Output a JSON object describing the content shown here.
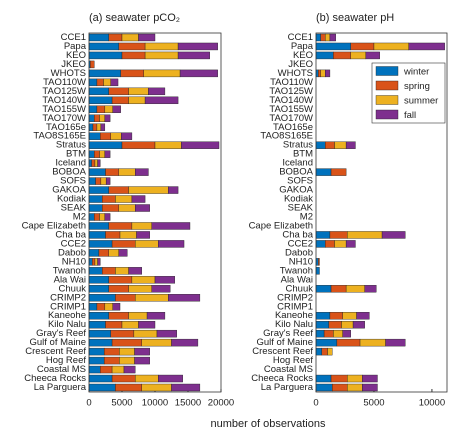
{
  "x_label": "number of observations",
  "chart_data": [
    {
      "type": "stacked-barh",
      "title": "(a) seawater pCO₂",
      "categories": [
        "CCE1",
        "Papa",
        "KEO",
        "JKEO",
        "WHOTS",
        "TAO110W",
        "TAO125W",
        "TAO140W",
        "TAO155W",
        "TAO170W",
        "TAO165e",
        "TAO8S165E",
        "Stratus",
        "BTM",
        "Iceland",
        "BOBOA",
        "SOFS",
        "GAKOA",
        "Kodiak",
        "SEAK",
        "M2",
        "Cape Elizabeth",
        "Cha ba",
        "CCE2",
        "Dabob",
        "NH10",
        "Twanoh",
        "Ala Wai",
        "Chuuk",
        "CRIMP2",
        "CRIMP1",
        "Kaneohe",
        "Kilo Nalu",
        "Gray's Reef",
        "Gulf of Maine",
        "Crescent Reef",
        "Hog Reef",
        "Coastal MS",
        "Cheeca Rocks",
        "La Parguera"
      ],
      "series": [
        {
          "name": "winter",
          "color": "#0072bd",
          "values": [
            3000,
            4500,
            5000,
            200,
            4800,
            1200,
            3000,
            3500,
            1200,
            800,
            600,
            1700,
            5000,
            800,
            400,
            2500,
            1000,
            3000,
            2000,
            2000,
            800,
            3000,
            2500,
            3500,
            1500,
            500,
            2000,
            3000,
            3000,
            4000,
            1200,
            3000,
            2500,
            3300,
            3500,
            2300,
            2300,
            1700,
            3500,
            4000
          ]
        },
        {
          "name": "spring",
          "color": "#d95319",
          "values": [
            2000,
            4000,
            3500,
            600,
            3500,
            1000,
            3000,
            2500,
            1200,
            800,
            600,
            1600,
            5000,
            800,
            500,
            2000,
            800,
            3000,
            2000,
            2500,
            800,
            3500,
            2200,
            3500,
            1500,
            400,
            2000,
            3500,
            3000,
            3000,
            1200,
            3000,
            2500,
            3500,
            4500,
            2300,
            2300,
            1800,
            3500,
            4000
          ]
        },
        {
          "name": "summer",
          "color": "#edb120",
          "values": [
            2500,
            5000,
            5000,
            0,
            5500,
            1100,
            3000,
            2500,
            1200,
            800,
            600,
            1600,
            4000,
            800,
            400,
            2500,
            800,
            6000,
            2500,
            2500,
            800,
            3000,
            2500,
            3500,
            1500,
            400,
            2000,
            3500,
            3500,
            5000,
            1200,
            2800,
            2500,
            3500,
            4500,
            2300,
            2300,
            1800,
            3500,
            4500
          ]
        },
        {
          "name": "fall",
          "color": "#7e2f8e",
          "values": [
            2500,
            6000,
            4800,
            0,
            5700,
            1100,
            2500,
            5000,
            1200,
            800,
            600,
            1600,
            5700,
            800,
            400,
            2000,
            600,
            1500,
            2000,
            2200,
            800,
            5800,
            2000,
            3900,
            1300,
            400,
            2000,
            3000,
            2800,
            4800,
            1100,
            2700,
            2500,
            3000,
            4000,
            2300,
            2300,
            1700,
            3700,
            4300
          ]
        }
      ],
      "xlim": [
        0,
        20000
      ],
      "xticks": [
        0,
        5000,
        10000,
        15000,
        20000
      ]
    },
    {
      "type": "stacked-barh",
      "title": "(b) seawater pH",
      "categories": [
        "CCE1",
        "Papa",
        "KEO",
        "JKEO",
        "WHOTS",
        "TAO110W",
        "TAO125W",
        "TAO140W",
        "TAO155W",
        "TAO170W",
        "TAO165e",
        "TAO8S165E",
        "Stratus",
        "BTM",
        "Iceland",
        "BOBOA",
        "SOFS",
        "GAKOA",
        "Kodiak",
        "SEAK",
        "M2",
        "Cape Elizabeth",
        "Cha ba",
        "CCE2",
        "Dabob",
        "NH10",
        "Twanoh",
        "Ala Wai",
        "Chuuk",
        "CRIMP2",
        "CRIMP1",
        "Kaneohe",
        "Kilo Nalu",
        "Gray's Reef",
        "Gulf of Maine",
        "Crescent Reef",
        "Hog Reef",
        "Coastal MS",
        "Cheeca Rocks",
        "La Parguera"
      ],
      "series": [
        {
          "name": "winter",
          "color": "#0072bd",
          "values": [
            400,
            3000,
            1500,
            0,
            200,
            0,
            0,
            0,
            0,
            0,
            0,
            0,
            800,
            0,
            0,
            1300,
            0,
            0,
            0,
            0,
            0,
            0,
            1200,
            800,
            0,
            200,
            300,
            0,
            1300,
            0,
            0,
            1200,
            1100,
            700,
            1800,
            500,
            0,
            0,
            1300,
            1400
          ]
        },
        {
          "name": "spring",
          "color": "#d95319",
          "values": [
            400,
            2000,
            1500,
            0,
            200,
            0,
            0,
            0,
            0,
            0,
            0,
            0,
            800,
            0,
            0,
            1300,
            0,
            0,
            0,
            0,
            0,
            0,
            1500,
            800,
            0,
            100,
            0,
            0,
            1300,
            0,
            0,
            1100,
            1100,
            800,
            2000,
            500,
            0,
            0,
            1400,
            1300
          ]
        },
        {
          "name": "summer",
          "color": "#edb120",
          "values": [
            400,
            3000,
            1300,
            0,
            400,
            0,
            0,
            0,
            0,
            0,
            0,
            0,
            1000,
            0,
            0,
            0,
            0,
            0,
            0,
            0,
            0,
            0,
            3000,
            1000,
            0,
            0,
            0,
            0,
            1600,
            0,
            0,
            1200,
            1000,
            800,
            2200,
            400,
            0,
            0,
            1300,
            1300
          ]
        },
        {
          "name": "fall",
          "color": "#7e2f8e",
          "values": [
            500,
            3100,
            1200,
            0,
            400,
            0,
            0,
            0,
            0,
            0,
            0,
            0,
            800,
            0,
            0,
            0,
            0,
            0,
            0,
            0,
            0,
            0,
            2000,
            800,
            0,
            0,
            0,
            0,
            1000,
            0,
            0,
            1100,
            1000,
            700,
            1700,
            0,
            0,
            0,
            1300,
            1300
          ]
        }
      ],
      "xlim": [
        0,
        11300
      ],
      "xticks": [
        0,
        5000,
        10000
      ],
      "legend": "upper right"
    }
  ]
}
